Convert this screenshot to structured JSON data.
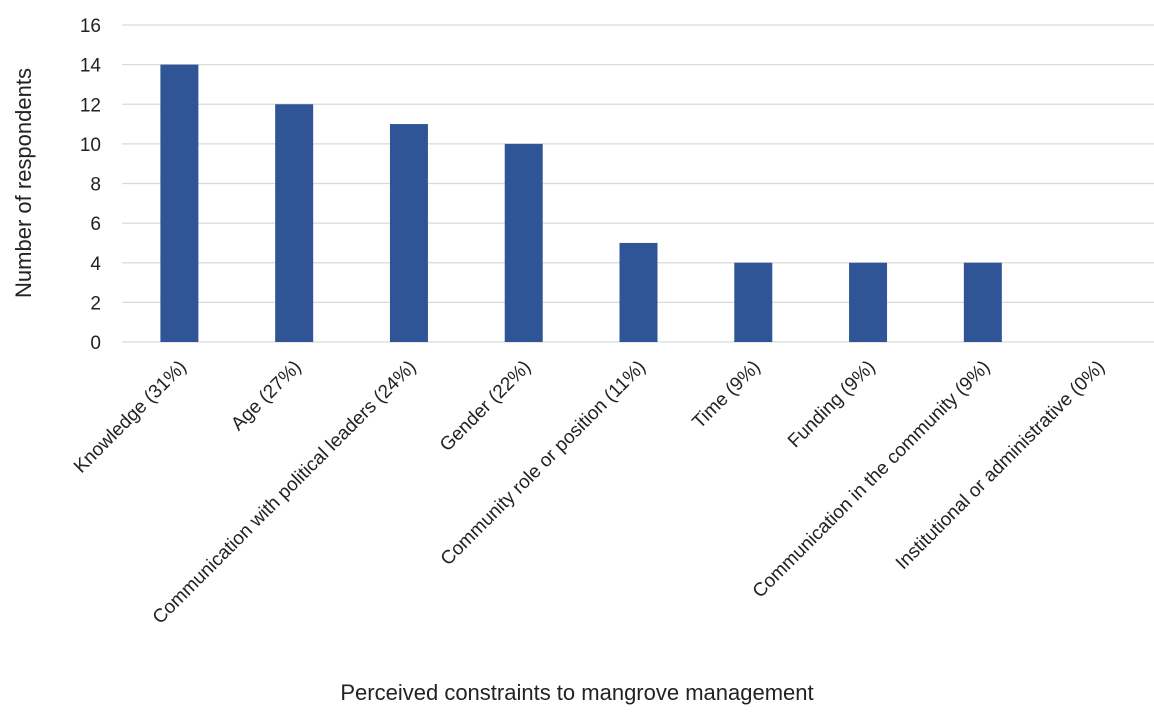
{
  "chart_data": {
    "type": "bar",
    "title": "",
    "xlabel": "Perceived constraints to mangrove management",
    "ylabel": "Number of respondents",
    "categories": [
      "Knowledge (31%)",
      "Age (27%)",
      "Communication with political leaders (24%)",
      "Gender (22%)",
      "Community role or position (11%)",
      "Time (9%)",
      "Funding (9%)",
      "Communication in the community (9%)",
      "Institutional or administrative (0%)"
    ],
    "values": [
      14,
      12,
      11,
      10,
      5,
      4,
      4,
      4,
      0
    ],
    "ylim": [
      0,
      16
    ],
    "yticks": [
      0,
      2,
      4,
      6,
      8,
      10,
      12,
      14,
      16
    ],
    "grid": true,
    "legend": "none",
    "bar_color": "#2f5597"
  }
}
